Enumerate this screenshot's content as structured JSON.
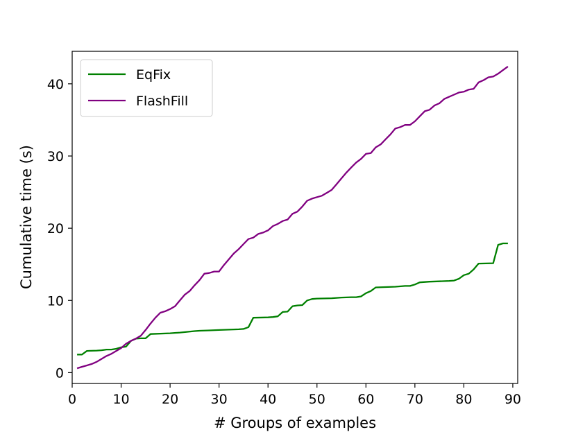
{
  "chart_data": {
    "type": "line",
    "title": "",
    "xlabel": "# Groups of examples",
    "ylabel": "Cumulative time (s)",
    "xlim": [
      0,
      91
    ],
    "ylim": [
      -1.5,
      44.5
    ],
    "xticks": [
      0,
      10,
      20,
      30,
      40,
      50,
      60,
      70,
      80,
      90
    ],
    "yticks": [
      0,
      10,
      20,
      30,
      40
    ],
    "grid": false,
    "legend": "top-left",
    "series": [
      {
        "name": "EqFix",
        "color": "#008000",
        "x": [
          1,
          2,
          3,
          5,
          6,
          7,
          8,
          9,
          10,
          11,
          12,
          13,
          14,
          15,
          16,
          20,
          22,
          25,
          26,
          28,
          30,
          32,
          34,
          35,
          36,
          37,
          40,
          41,
          42,
          43,
          44,
          45,
          46,
          47,
          48,
          49,
          50,
          53,
          55,
          57,
          58,
          59,
          60,
          61,
          62,
          64,
          66,
          68,
          69,
          70,
          71,
          72,
          73,
          75,
          77,
          78,
          79,
          80,
          81,
          82,
          83,
          86,
          87,
          88,
          89
        ],
        "y": [
          2.5,
          2.5,
          3.0,
          3.05,
          3.1,
          3.2,
          3.2,
          3.3,
          3.5,
          3.6,
          4.4,
          4.7,
          4.75,
          4.75,
          5.35,
          5.45,
          5.55,
          5.75,
          5.8,
          5.85,
          5.9,
          5.95,
          6.0,
          6.05,
          6.3,
          7.6,
          7.65,
          7.7,
          7.8,
          8.4,
          8.45,
          9.2,
          9.3,
          9.35,
          10.0,
          10.2,
          10.25,
          10.3,
          10.4,
          10.45,
          10.45,
          10.55,
          11.0,
          11.3,
          11.8,
          11.85,
          11.9,
          12.0,
          12.0,
          12.2,
          12.5,
          12.55,
          12.6,
          12.65,
          12.7,
          12.75,
          13.0,
          13.5,
          13.7,
          14.3,
          15.1,
          15.15,
          17.7,
          17.9,
          17.9
        ]
      },
      {
        "name": "FlashFill",
        "color": "#800080",
        "x": [
          1,
          2,
          3,
          4,
          5,
          6,
          7,
          8,
          9,
          10,
          11,
          12,
          13,
          14,
          15,
          16,
          17,
          18,
          19,
          20,
          21,
          22,
          23,
          24,
          25,
          26,
          27,
          28,
          29,
          30,
          31,
          32,
          33,
          34,
          35,
          36,
          37,
          38,
          39,
          40,
          41,
          42,
          43,
          44,
          45,
          46,
          47,
          48,
          49,
          50,
          51,
          52,
          53,
          54,
          55,
          56,
          57,
          58,
          59,
          60,
          61,
          62,
          63,
          64,
          65,
          66,
          67,
          68,
          69,
          70,
          71,
          72,
          73,
          74,
          75,
          76,
          77,
          78,
          79,
          80,
          81,
          82,
          83,
          84,
          85,
          86,
          87,
          88,
          89
        ],
        "y": [
          0.6,
          0.8,
          1.0,
          1.2,
          1.5,
          1.9,
          2.3,
          2.6,
          3.0,
          3.4,
          4.0,
          4.4,
          4.7,
          5.1,
          5.9,
          6.8,
          7.6,
          8.3,
          8.5,
          8.8,
          9.2,
          10.0,
          10.8,
          11.3,
          12.1,
          12.8,
          13.7,
          13.8,
          14.0,
          14.0,
          14.9,
          15.7,
          16.5,
          17.1,
          17.8,
          18.5,
          18.7,
          19.2,
          19.4,
          19.7,
          20.3,
          20.6,
          21.0,
          21.2,
          22.0,
          22.3,
          23.0,
          23.8,
          24.1,
          24.3,
          24.5,
          24.9,
          25.3,
          26.1,
          26.9,
          27.7,
          28.4,
          29.1,
          29.6,
          30.3,
          30.4,
          31.2,
          31.6,
          32.3,
          33.0,
          33.8,
          34.0,
          34.3,
          34.3,
          34.8,
          35.5,
          36.2,
          36.4,
          37.0,
          37.3,
          37.9,
          38.2,
          38.5,
          38.8,
          38.9,
          39.2,
          39.3,
          40.2,
          40.5,
          40.9,
          41.0,
          41.4,
          41.9,
          42.4
        ]
      }
    ]
  }
}
